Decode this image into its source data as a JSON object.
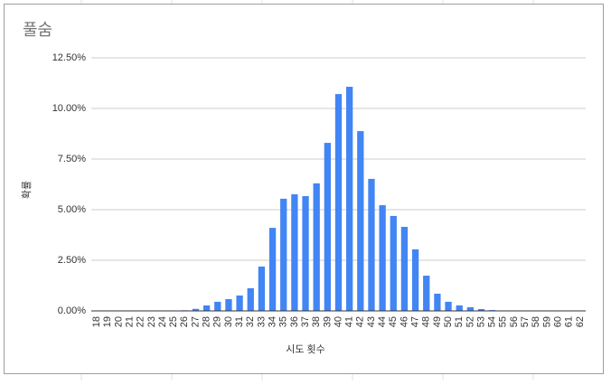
{
  "chart_data": {
    "type": "bar",
    "title": "풀숨",
    "x_label": "시도 횟수",
    "y_label": "확률",
    "categories": [
      "18",
      "19",
      "20",
      "21",
      "22",
      "23",
      "24",
      "25",
      "26",
      "27",
      "28",
      "29",
      "30",
      "31",
      "32",
      "33",
      "34",
      "35",
      "36",
      "37",
      "38",
      "39",
      "40",
      "41",
      "42",
      "43",
      "44",
      "45",
      "46",
      "47",
      "48",
      "49",
      "50",
      "51",
      "52",
      "53",
      "54",
      "55",
      "56",
      "57",
      "58",
      "59",
      "60",
      "61",
      "62"
    ],
    "values": [
      0,
      0,
      0,
      0,
      0,
      0,
      0,
      0,
      0.03,
      0.1,
      0.27,
      0.45,
      0.58,
      0.76,
      1.12,
      2.19,
      4.1,
      5.54,
      5.76,
      5.67,
      6.3,
      8.3,
      10.71,
      11.07,
      8.88,
      6.52,
      5.22,
      4.69,
      4.15,
      3.04,
      1.74,
      0.85,
      0.45,
      0.27,
      0.18,
      0.09,
      0.04,
      0,
      0,
      0,
      0,
      0,
      0,
      0,
      0
    ],
    "color": "#4285f4",
    "ylim": [
      0,
      12.5
    ],
    "yticks": [
      {
        "value": 0,
        "label": "0.00%"
      },
      {
        "value": 2.5,
        "label": "2.50%"
      },
      {
        "value": 5,
        "label": "5.00%"
      },
      {
        "value": 7.5,
        "label": "7.50%"
      },
      {
        "value": 10,
        "label": "10.00%"
      },
      {
        "value": 12.5,
        "label": "12.50%"
      }
    ],
    "grid": true
  }
}
